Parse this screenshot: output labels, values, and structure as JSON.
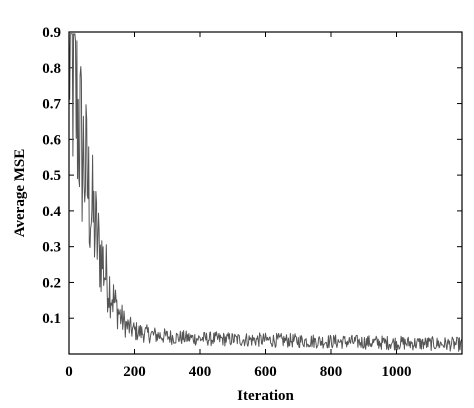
{
  "chart_data": {
    "type": "line",
    "title": "",
    "xlabel": "Iteration",
    "ylabel": "Average MSE",
    "xlim": [
      0,
      1200
    ],
    "ylim": [
      0,
      0.9
    ],
    "x_ticks": [
      0,
      200,
      400,
      600,
      800,
      1000
    ],
    "x_tick_labels": [
      "0",
      "200",
      "400",
      "600",
      "800",
      "1000"
    ],
    "y_ticks": [
      0.1,
      0.2,
      0.3,
      0.4,
      0.5,
      0.6,
      0.7,
      0.8,
      0.9
    ],
    "y_tick_labels": [
      "0.1",
      "0.2",
      "0.3",
      "0.4",
      "0.5",
      "0.6",
      "0.7",
      "0.8",
      "0.9"
    ],
    "grid": false,
    "legend": "none",
    "line_color": "#555555",
    "series": [
      {
        "x": [
          0,
          10,
          20,
          30,
          40,
          50,
          60,
          70,
          80,
          90,
          100,
          110,
          120,
          130,
          140,
          150,
          160,
          170,
          180,
          190,
          200,
          210,
          220,
          230,
          240,
          250,
          260,
          280,
          300,
          320,
          340,
          360,
          380,
          400,
          450,
          500,
          550,
          600,
          650,
          700,
          750,
          800,
          850,
          900,
          950,
          1000,
          1050,
          1100,
          1150,
          1200
        ],
        "values": [
          0.88,
          0.8,
          0.72,
          0.65,
          0.57,
          0.52,
          0.45,
          0.4,
          0.35,
          0.3,
          0.27,
          0.23,
          0.2,
          0.17,
          0.14,
          0.12,
          0.1,
          0.085,
          0.075,
          0.07,
          0.065,
          0.062,
          0.06,
          0.058,
          0.056,
          0.055,
          0.053,
          0.051,
          0.049,
          0.047,
          0.046,
          0.045,
          0.044,
          0.043,
          0.042,
          0.041,
          0.04,
          0.039,
          0.038,
          0.037,
          0.036,
          0.035,
          0.034,
          0.033,
          0.032,
          0.031,
          0.03,
          0.029,
          0.028,
          0.027
        ]
      }
    ]
  }
}
